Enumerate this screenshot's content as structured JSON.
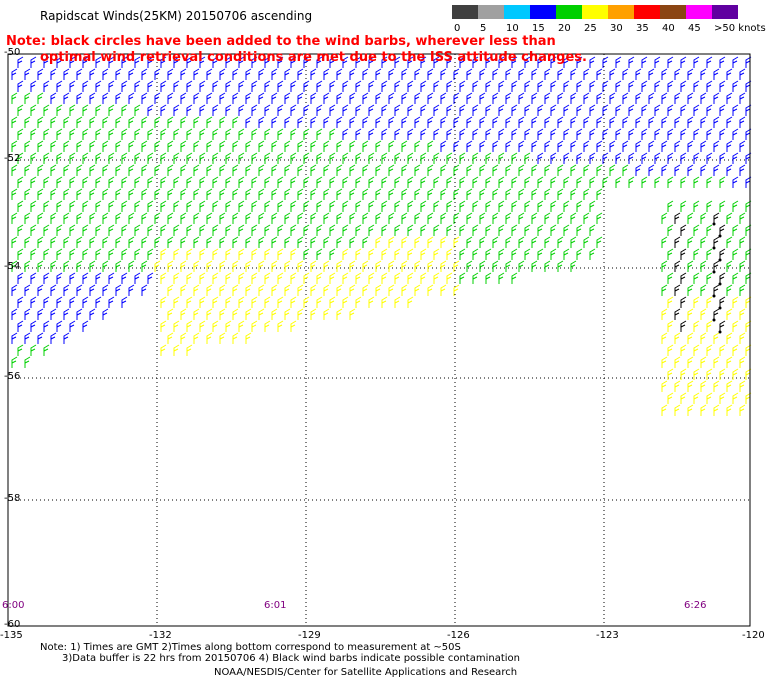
{
  "title": "Rapidscat Winds(25KM) 20150706 ascending",
  "note_line1": "Note: black circles have been added to the wind barbs, wherever less than",
  "note_line2": "optimal wind retrieval conditions are met due to the ISS attitude changes.",
  "scale": {
    "labels": [
      "0",
      "5",
      "10",
      "15",
      "20",
      "25",
      "30",
      "35",
      "40",
      "45",
      ">50 knots"
    ],
    "colors": [
      "#404040",
      "#a0a0a0",
      "#00c8ff",
      "#0000ff",
      "#00d000",
      "#ffff00",
      "#ffa000",
      "#ff0000",
      "#8b4513",
      "#ff00ff",
      "#6000a0"
    ]
  },
  "axes": {
    "lat_labels": [
      "-50",
      "-52",
      "-54",
      "-56",
      "-58",
      "-60"
    ],
    "lon_labels": [
      "-135",
      "-132",
      "-129",
      "-126",
      "-123",
      "-120"
    ]
  },
  "times": [
    "6:00",
    "6:01",
    "6:26"
  ],
  "footer": {
    "line1": "Note: 1) Times are GMT 2)Times along bottom correspond to measurement at ~50S",
    "line2": "3)Data buffer is 22 hrs from 20150706 4) Black wind barbs indicate possible contamination",
    "line3": "NOAA/NESDIS/Center for Satellite Applications and Research"
  }
}
